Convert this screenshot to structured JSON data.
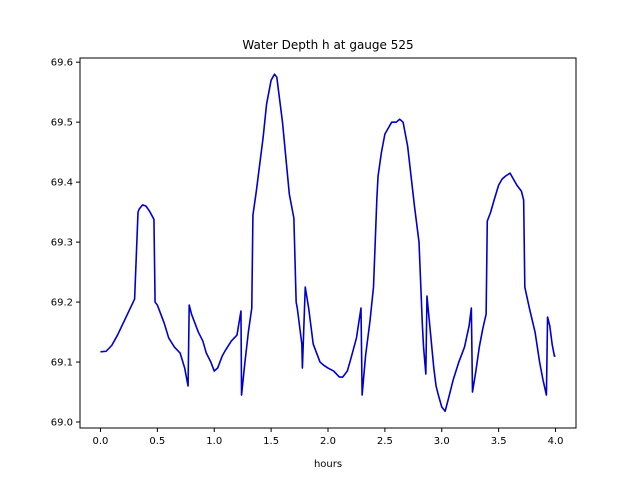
{
  "chart_data": {
    "type": "line",
    "title": "Water Depth h at gauge 525",
    "xlabel": "hours",
    "ylabel": "",
    "xlim": [
      -0.18,
      4.18
    ],
    "ylim": [
      68.99,
      69.607
    ],
    "xticks": [
      0.0,
      0.5,
      1.0,
      1.5,
      2.0,
      2.5,
      3.0,
      3.5,
      4.0
    ],
    "xtick_labels": [
      "0.0",
      "0.5",
      "1.0",
      "1.5",
      "2.0",
      "2.5",
      "3.0",
      "3.5",
      "4.0"
    ],
    "yticks": [
      69.0,
      69.1,
      69.2,
      69.3,
      69.4,
      69.5,
      69.6
    ],
    "ytick_labels": [
      "69.0",
      "69.1",
      "69.2",
      "69.3",
      "69.4",
      "69.5",
      "69.6"
    ],
    "grid": false,
    "line_color": "#0000cc",
    "series": [
      {
        "name": "",
        "x": [
          0.0,
          0.05,
          0.1,
          0.15,
          0.2,
          0.25,
          0.3,
          0.33,
          0.34,
          0.37,
          0.4,
          0.43,
          0.47,
          0.48,
          0.5,
          0.53,
          0.56,
          0.6,
          0.65,
          0.7,
          0.74,
          0.77,
          0.78,
          0.8,
          0.83,
          0.86,
          0.9,
          0.93,
          0.97,
          1.0,
          1.03,
          1.07,
          1.1,
          1.15,
          1.2,
          1.235,
          1.24,
          1.27,
          1.3,
          1.33,
          1.34,
          1.37,
          1.4,
          1.43,
          1.46,
          1.5,
          1.53,
          1.55,
          1.57,
          1.6,
          1.63,
          1.66,
          1.7,
          1.72,
          1.73,
          1.77,
          1.775,
          1.8,
          1.83,
          1.85,
          1.87,
          1.9,
          1.93,
          1.96,
          2.0,
          2.05,
          2.1,
          2.13,
          2.17,
          2.2,
          2.25,
          2.29,
          2.3,
          2.33,
          2.37,
          2.4,
          2.43,
          2.44,
          2.47,
          2.5,
          2.53,
          2.56,
          2.6,
          2.63,
          2.66,
          2.7,
          2.73,
          2.76,
          2.8,
          2.83,
          2.84,
          2.86,
          2.87,
          2.9,
          2.93,
          2.95,
          2.97,
          3.0,
          3.03,
          3.06,
          3.1,
          3.15,
          3.2,
          3.24,
          3.26,
          3.27,
          3.3,
          3.33,
          3.36,
          3.39,
          3.4,
          3.43,
          3.46,
          3.5,
          3.53,
          3.56,
          3.6,
          3.63,
          3.66,
          3.7,
          3.72,
          3.73,
          3.77,
          3.82,
          3.86,
          3.89,
          3.92,
          3.93,
          3.95,
          3.97,
          3.99,
          4.0
        ],
        "values": [
          69.117,
          69.118,
          69.128,
          69.145,
          69.165,
          69.185,
          69.205,
          69.35,
          69.355,
          69.362,
          69.36,
          69.352,
          69.338,
          69.2,
          69.195,
          69.18,
          69.165,
          69.14,
          69.125,
          69.115,
          69.09,
          69.06,
          69.195,
          69.18,
          69.165,
          69.15,
          69.135,
          69.115,
          69.1,
          69.085,
          69.09,
          69.11,
          69.12,
          69.135,
          69.145,
          69.185,
          69.045,
          69.1,
          69.15,
          69.19,
          69.345,
          69.385,
          69.43,
          69.475,
          69.53,
          69.57,
          69.58,
          69.575,
          69.545,
          69.5,
          69.44,
          69.38,
          69.34,
          69.2,
          69.19,
          69.13,
          69.09,
          69.225,
          69.19,
          69.16,
          69.13,
          69.115,
          69.1,
          69.095,
          69.09,
          69.085,
          69.075,
          69.075,
          69.085,
          69.105,
          69.14,
          69.19,
          69.045,
          69.11,
          69.17,
          69.225,
          69.375,
          69.41,
          69.45,
          69.48,
          69.49,
          69.5,
          69.5,
          69.505,
          69.5,
          69.46,
          69.41,
          69.36,
          69.3,
          69.16,
          69.125,
          69.08,
          69.21,
          69.15,
          69.09,
          69.06,
          69.045,
          69.025,
          69.018,
          69.04,
          69.07,
          69.1,
          69.125,
          69.16,
          69.19,
          69.05,
          69.085,
          69.125,
          69.155,
          69.18,
          69.335,
          69.35,
          69.37,
          69.395,
          69.405,
          69.41,
          69.415,
          69.405,
          69.395,
          69.385,
          69.37,
          69.225,
          69.19,
          69.15,
          69.1,
          69.07,
          69.045,
          69.175,
          69.16,
          69.13,
          69.11,
          69.11
        ]
      }
    ]
  }
}
